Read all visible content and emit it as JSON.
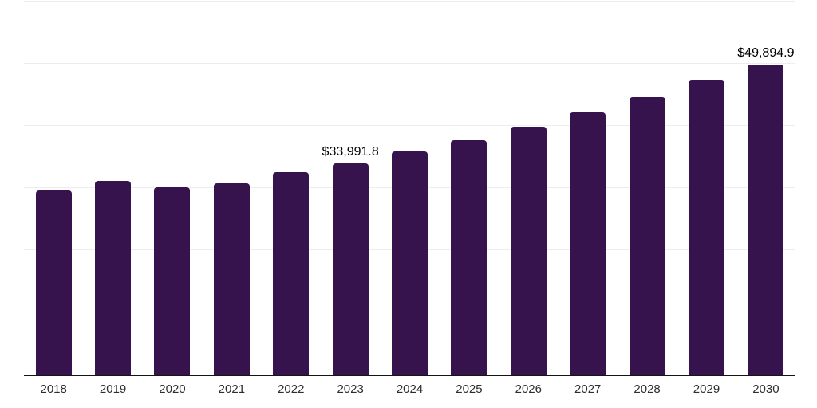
{
  "chart_data": {
    "type": "bar",
    "title": "",
    "xlabel": "",
    "ylabel": "",
    "legend": "none",
    "grid": "on",
    "categories": [
      "2018",
      "2019",
      "2020",
      "2021",
      "2022",
      "2023",
      "2024",
      "2025",
      "2026",
      "2027",
      "2028",
      "2029",
      "2030"
    ],
    "values": [
      29670,
      31150,
      30180,
      30820,
      32520,
      33991.8,
      35860,
      37650,
      39830,
      42140,
      44610,
      47310,
      49894.9
    ],
    "point_labels": [
      "",
      "",
      "",
      "",
      "",
      "$33,991.8",
      "",
      "",
      "",
      "",
      "",
      "",
      "$49,894.9"
    ],
    "ylim": [
      0,
      60000
    ],
    "grid_step": 10000,
    "colors": {
      "bar": "#36134C",
      "axis_line": "#141414",
      "gridline": "#ededed",
      "tick_label": "#2d2d2d",
      "value_label": "#000000",
      "background": "#ffffff"
    }
  }
}
